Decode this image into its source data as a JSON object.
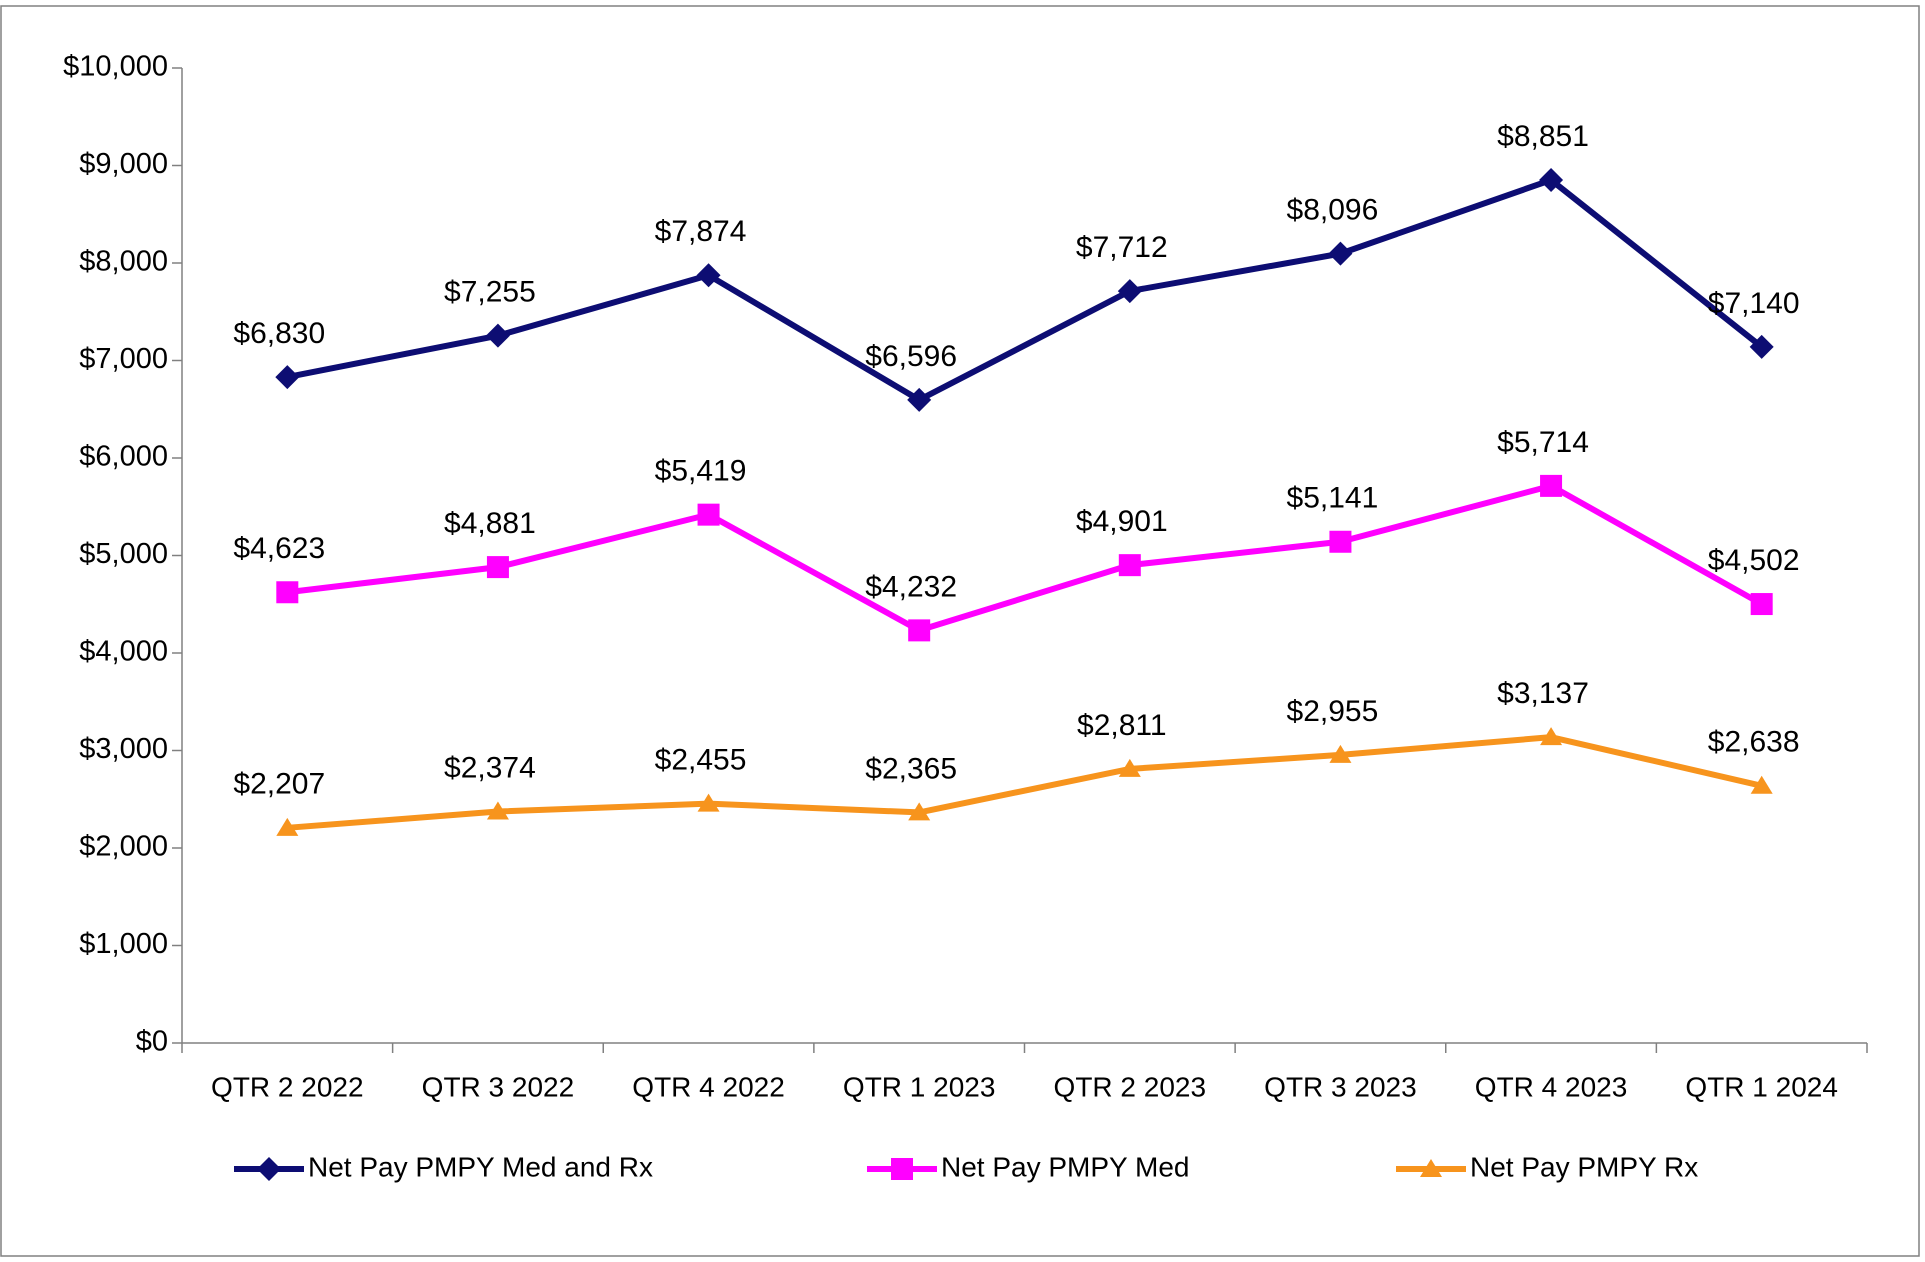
{
  "chart_data": {
    "type": "line",
    "categories": [
      "QTR 2 2022",
      "QTR 3 2022",
      "QTR 4 2022",
      "QTR 1 2023",
      "QTR 2 2023",
      "QTR 3 2023",
      "QTR 4 2023",
      "QTR 1 2024"
    ],
    "series": [
      {
        "name": "Net Pay PMPY Med and Rx",
        "color": "#0d0d73",
        "marker": "diamond",
        "values": [
          6830,
          7255,
          7874,
          6596,
          7712,
          8096,
          8851,
          7140
        ],
        "value_labels": [
          "$6,830",
          "$7,255",
          "$7,874",
          "$6,596",
          "$7,712",
          "$8,096",
          "$8,851",
          "$7,140"
        ]
      },
      {
        "name": "Net Pay PMPY Med",
        "color": "#ff00ff",
        "marker": "square",
        "values": [
          4623,
          4881,
          5419,
          4232,
          4901,
          5141,
          5714,
          4502
        ],
        "value_labels": [
          "$4,623",
          "$4,881",
          "$5,419",
          "$4,232",
          "$4,901",
          "$5,141",
          "$5,714",
          "$4,502"
        ]
      },
      {
        "name": "Net Pay PMPY Rx",
        "color": "#f7941d",
        "marker": "triangle",
        "values": [
          2207,
          2374,
          2455,
          2365,
          2811,
          2955,
          3137,
          2638
        ],
        "value_labels": [
          "$2,207",
          "$2,374",
          "$2,455",
          "$2,365",
          "$2,811",
          "$2,955",
          "$3,137",
          "$2,638"
        ]
      }
    ],
    "ylim": [
      0,
      10000
    ],
    "yticks": [
      {
        "value": 0,
        "label": "$0"
      },
      {
        "value": 1000,
        "label": "$1,000"
      },
      {
        "value": 2000,
        "label": "$2,000"
      },
      {
        "value": 3000,
        "label": "$3,000"
      },
      {
        "value": 4000,
        "label": "$4,000"
      },
      {
        "value": 5000,
        "label": "$5,000"
      },
      {
        "value": 6000,
        "label": "$6,000"
      },
      {
        "value": 7000,
        "label": "$7,000"
      },
      {
        "value": 8000,
        "label": "$8,000"
      },
      {
        "value": 9000,
        "label": "$9,000"
      },
      {
        "value": 10000,
        "label": "$10,000"
      }
    ],
    "grid": false,
    "legend": "bottom"
  }
}
